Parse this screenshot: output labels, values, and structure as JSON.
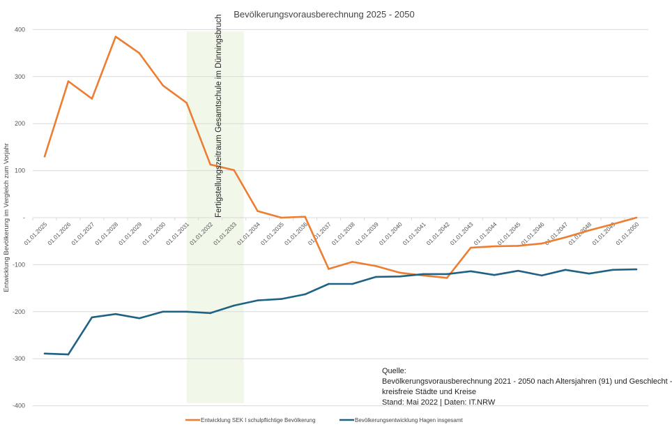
{
  "chart_data": {
    "type": "line",
    "title": "Bevölkerungsvorausberechnung 2025 - 2050",
    "xlabel": "",
    "ylabel": "Entwicklung Bevölkerung im Vergleich zum Vorjahr",
    "ylim": [
      -400,
      400
    ],
    "yticks": [
      400,
      300,
      200,
      100,
      0,
      -100,
      -200,
      -300,
      -400
    ],
    "ytick_labels": [
      "400",
      "300",
      "200",
      "100",
      "-",
      "-100",
      "-200",
      "-300",
      "-400"
    ],
    "grid": true,
    "legend": "bottom",
    "categories": [
      "01.01.2025",
      "01.01.2026",
      "01.01.2027",
      "01.01.2028",
      "01.01.2029",
      "01.01.2030",
      "01.01.2031",
      "01.01.2032",
      "01.01.2033",
      "01.01.2034",
      "01.01.2035",
      "01.01.2036",
      "01.01.2037",
      "01.01.2038",
      "01.01.2039",
      "01.01.2040",
      "01.01.2041",
      "01.01.2042",
      "01.01.2043",
      "01.01.2044",
      "01.01.2045",
      "01.01.2046",
      "01.01.2047",
      "01.01.2048",
      "01.01.2049",
      "01.01.2050"
    ],
    "series": [
      {
        "name": "Entwicklung SEK I schulpflichtige Bevölkerung",
        "color": "#ED7D31",
        "values": [
          130,
          290,
          253,
          385,
          350,
          281,
          244,
          113,
          101,
          14,
          0,
          2,
          -109,
          -94,
          -103,
          -117,
          -123,
          -128,
          -64,
          -61,
          -60,
          -55,
          -42,
          -27,
          -14,
          0
        ]
      },
      {
        "name": "Bevölkerungsentwicklung Hagen insgesamt",
        "color": "#1F6284",
        "values": [
          -289,
          -291,
          -212,
          -205,
          -214,
          -200,
          -200,
          -203,
          -187,
          -176,
          -173,
          -163,
          -141,
          -141,
          -126,
          -125,
          -120,
          -120,
          -114,
          -122,
          -113,
          -123,
          -111,
          -119,
          -111,
          -110
        ]
      }
    ],
    "annotation": {
      "text": "Fertigstellungszeitraum Gesamtschule im Dünningsbruch",
      "from": "01.01.2031",
      "to": "01.01.2033",
      "color": "#F1F8EA"
    },
    "source": {
      "lines": [
        "Quelle:",
        "Bevölkerungsvorausberechnung 2021 - 2050 nach Altersjahren (91) und Geschlecht -",
        "kreisfreie Städte und Kreise",
        "Stand: Mai 2022 | Daten: IT.NRW"
      ]
    }
  }
}
